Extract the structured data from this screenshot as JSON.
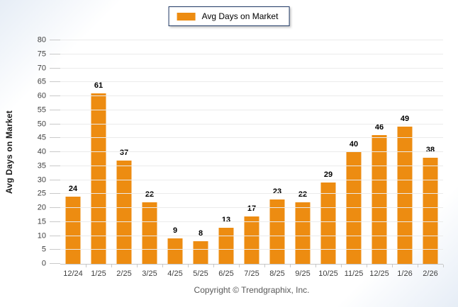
{
  "legend": {
    "label": "Avg Days on Market"
  },
  "footer": {
    "copyright": "Copyright © Trendgraphix, Inc."
  },
  "colors": {
    "bar": "#ED8C11",
    "gridline": "#EBEBEB",
    "axis": "#C6C6C6",
    "legend_border": "#1F3864",
    "tick_text": "#3F3F3F",
    "value_text": "#000000",
    "copyright_text": "#595959"
  },
  "chart_data": {
    "type": "bar",
    "categories": [
      "12/24",
      "1/25",
      "2/25",
      "3/25",
      "4/25",
      "5/25",
      "6/25",
      "7/25",
      "8/25",
      "9/25",
      "10/25",
      "11/25",
      "12/25",
      "1/26",
      "2/26"
    ],
    "values": [
      24,
      61,
      37,
      22,
      9,
      8,
      13,
      17,
      23,
      22,
      29,
      40,
      46,
      49,
      38
    ],
    "title": "",
    "xlabel": "",
    "ylabel": "Avg Days on Market",
    "ylim": [
      0,
      80
    ],
    "ytick_step": 5,
    "grid": true,
    "legend_position": "top-center",
    "value_labels": true
  }
}
